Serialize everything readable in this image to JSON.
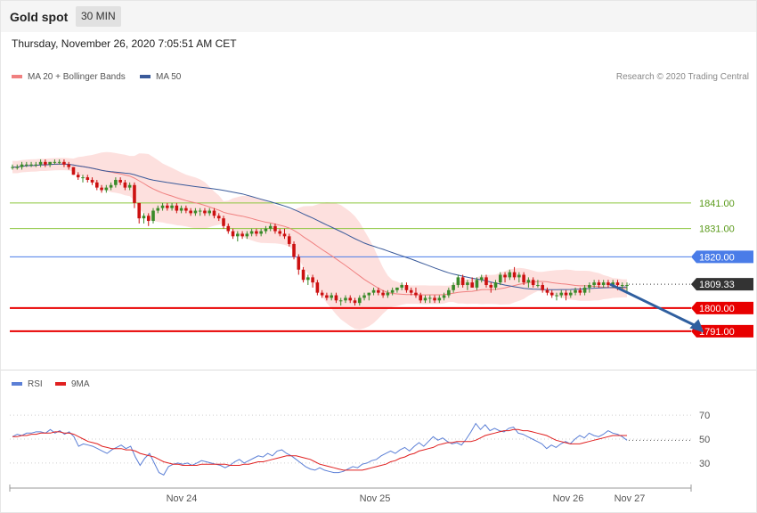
{
  "header": {
    "title": "Gold spot",
    "timeframe": "30 MIN"
  },
  "date_text": "Thursday, November 26, 2020 7:05:51 AM CET",
  "legend": {
    "ma20": "MA 20 + Bollinger Bands",
    "ma50": "MA 50",
    "rsi": "RSI",
    "ma9": "9MA",
    "ma20_color": "#f08080",
    "ma50_color": "#3a5a9a",
    "rsi_color": "#5b7fd6",
    "ma9_color": "#e02020"
  },
  "credit": "Research © 2020 Trading Central",
  "chart_data": [
    {
      "type": "candlestick",
      "ylim": [
        1784,
        1875
      ],
      "x_labels": [
        "Nov 24",
        "Nov 25",
        "Nov 26",
        "Nov 27"
      ],
      "levels": [
        {
          "value": 1841.0,
          "label": "1841.00",
          "style": "resistance-thin",
          "color": "#8dc63f"
        },
        {
          "value": 1831.0,
          "label": "1831.00",
          "style": "resistance-thin",
          "color": "#8dc63f"
        },
        {
          "value": 1820.0,
          "label": "1820.00",
          "style": "pivot",
          "color": "#4a7ce8"
        },
        {
          "value": 1809.33,
          "label": "1809.33",
          "style": "last",
          "color": "#333333"
        },
        {
          "value": 1800.0,
          "label": "1800.00",
          "style": "support",
          "color": "#e80000"
        },
        {
          "value": 1791.0,
          "label": "1791.00",
          "style": "support",
          "color": "#e80000"
        }
      ],
      "colors": {
        "up": "#3a8a2a",
        "down": "#cc1111",
        "band": "#fde0de",
        "ma20": "#f08080",
        "ma50": "#3a5a9a",
        "arrow": "#2f5f9f",
        "grid": "#e0e0e0"
      },
      "candles": [
        [
          1855,
          1856,
          1854,
          1855
        ],
        [
          1855,
          1856,
          1854,
          1855
        ],
        [
          1855,
          1857,
          1854,
          1856
        ],
        [
          1856,
          1857,
          1855,
          1856
        ],
        [
          1856,
          1857,
          1855,
          1856
        ],
        [
          1856,
          1857,
          1855,
          1856
        ],
        [
          1856,
          1858,
          1855,
          1857
        ],
        [
          1857,
          1858,
          1855,
          1856
        ],
        [
          1856,
          1857,
          1855,
          1857
        ],
        [
          1857,
          1858,
          1856,
          1857
        ],
        [
          1857,
          1858,
          1856,
          1857
        ],
        [
          1857,
          1858,
          1855,
          1856
        ],
        [
          1856,
          1857,
          1854,
          1855
        ],
        [
          1855,
          1855,
          1852,
          1852
        ],
        [
          1852,
          1853,
          1850,
          1851
        ],
        [
          1851,
          1852,
          1849,
          1851
        ],
        [
          1851,
          1852,
          1849,
          1850
        ],
        [
          1850,
          1851,
          1848,
          1849
        ],
        [
          1849,
          1850,
          1846,
          1847
        ],
        [
          1847,
          1848,
          1845,
          1846
        ],
        [
          1846,
          1848,
          1845,
          1847
        ],
        [
          1847,
          1849,
          1846,
          1848
        ],
        [
          1848,
          1851,
          1847,
          1850
        ],
        [
          1850,
          1851,
          1848,
          1849
        ],
        [
          1849,
          1850,
          1846,
          1847
        ],
        [
          1847,
          1849,
          1846,
          1848
        ],
        [
          1848,
          1849,
          1839,
          1841
        ],
        [
          1841,
          1841,
          1833,
          1835
        ],
        [
          1835,
          1837,
          1833,
          1836
        ],
        [
          1836,
          1837,
          1832,
          1834
        ],
        [
          1834,
          1839,
          1833,
          1838
        ],
        [
          1838,
          1840,
          1837,
          1839
        ],
        [
          1839,
          1841,
          1838,
          1840
        ],
        [
          1840,
          1841,
          1838,
          1839
        ],
        [
          1839,
          1841,
          1838,
          1840
        ],
        [
          1840,
          1841,
          1837,
          1838
        ],
        [
          1838,
          1840,
          1837,
          1839
        ],
        [
          1839,
          1840,
          1837,
          1838
        ],
        [
          1838,
          1839,
          1836,
          1837
        ],
        [
          1837,
          1839,
          1836,
          1838
        ],
        [
          1838,
          1839,
          1836,
          1838
        ],
        [
          1838,
          1839,
          1836,
          1837
        ],
        [
          1837,
          1839,
          1836,
          1838
        ],
        [
          1838,
          1839,
          1835,
          1836
        ],
        [
          1836,
          1837,
          1834,
          1835
        ],
        [
          1835,
          1836,
          1831,
          1832
        ],
        [
          1832,
          1833,
          1829,
          1830
        ],
        [
          1830,
          1831,
          1827,
          1828
        ],
        [
          1828,
          1830,
          1826,
          1829
        ],
        [
          1829,
          1830,
          1827,
          1828
        ],
        [
          1828,
          1830,
          1827,
          1829
        ],
        [
          1829,
          1831,
          1828,
          1830
        ],
        [
          1830,
          1831,
          1828,
          1829
        ],
        [
          1829,
          1831,
          1828,
          1830
        ],
        [
          1830,
          1832,
          1829,
          1831
        ],
        [
          1831,
          1833,
          1830,
          1832
        ],
        [
          1832,
          1833,
          1829,
          1830
        ],
        [
          1830,
          1831,
          1828,
          1829
        ],
        [
          1829,
          1831,
          1827,
          1828
        ],
        [
          1828,
          1829,
          1824,
          1825
        ],
        [
          1825,
          1826,
          1819,
          1820
        ],
        [
          1820,
          1821,
          1813,
          1815
        ],
        [
          1815,
          1816,
          1810,
          1811
        ],
        [
          1811,
          1813,
          1809,
          1812
        ],
        [
          1812,
          1813,
          1808,
          1810
        ],
        [
          1810,
          1811,
          1805,
          1806
        ],
        [
          1806,
          1807,
          1804,
          1805
        ],
        [
          1805,
          1806,
          1803,
          1804
        ],
        [
          1804,
          1806,
          1803,
          1805
        ],
        [
          1805,
          1806,
          1802,
          1803
        ],
        [
          1803,
          1804,
          1801,
          1803
        ],
        [
          1803,
          1805,
          1802,
          1804
        ],
        [
          1804,
          1805,
          1802,
          1803
        ],
        [
          1803,
          1804,
          1801,
          1802
        ],
        [
          1802,
          1805,
          1801,
          1804
        ],
        [
          1804,
          1806,
          1803,
          1805
        ],
        [
          1805,
          1806,
          1803,
          1806
        ],
        [
          1806,
          1808,
          1805,
          1807
        ],
        [
          1807,
          1808,
          1805,
          1806
        ],
        [
          1806,
          1807,
          1804,
          1805
        ],
        [
          1805,
          1807,
          1804,
          1806
        ],
        [
          1806,
          1808,
          1805,
          1807
        ],
        [
          1807,
          1808,
          1806,
          1808
        ],
        [
          1808,
          1810,
          1807,
          1809
        ],
        [
          1809,
          1810,
          1806,
          1807
        ],
        [
          1807,
          1808,
          1805,
          1806
        ],
        [
          1806,
          1808,
          1804,
          1805
        ],
        [
          1805,
          1806,
          1802,
          1803
        ],
        [
          1803,
          1805,
          1802,
          1804
        ],
        [
          1804,
          1805,
          1802,
          1804
        ],
        [
          1804,
          1805,
          1802,
          1803
        ],
        [
          1803,
          1805,
          1802,
          1804
        ],
        [
          1804,
          1806,
          1803,
          1805
        ],
        [
          1805,
          1808,
          1804,
          1807
        ],
        [
          1807,
          1810,
          1806,
          1809
        ],
        [
          1809,
          1813,
          1808,
          1812
        ],
        [
          1812,
          1813,
          1808,
          1809
        ],
        [
          1809,
          1811,
          1807,
          1810
        ],
        [
          1810,
          1812,
          1808,
          1808
        ],
        [
          1808,
          1812,
          1807,
          1811
        ],
        [
          1811,
          1813,
          1810,
          1812
        ],
        [
          1812,
          1813,
          1808,
          1809
        ],
        [
          1809,
          1810,
          1806,
          1808
        ],
        [
          1808,
          1811,
          1807,
          1810
        ],
        [
          1810,
          1814,
          1809,
          1813
        ],
        [
          1813,
          1814,
          1810,
          1812
        ],
        [
          1812,
          1815,
          1811,
          1814
        ],
        [
          1814,
          1816,
          1811,
          1812
        ],
        [
          1812,
          1814,
          1810,
          1813
        ],
        [
          1813,
          1814,
          1809,
          1810
        ],
        [
          1810,
          1812,
          1808,
          1811
        ],
        [
          1811,
          1812,
          1808,
          1809
        ],
        [
          1809,
          1811,
          1808,
          1809
        ],
        [
          1809,
          1810,
          1806,
          1807
        ],
        [
          1807,
          1808,
          1805,
          1806
        ],
        [
          1806,
          1807,
          1804,
          1805
        ],
        [
          1805,
          1806,
          1803,
          1805
        ],
        [
          1805,
          1807,
          1804,
          1806
        ],
        [
          1806,
          1807,
          1803,
          1805
        ],
        [
          1805,
          1807,
          1804,
          1806
        ],
        [
          1806,
          1808,
          1805,
          1807
        ],
        [
          1807,
          1808,
          1805,
          1806
        ],
        [
          1806,
          1809,
          1805,
          1808
        ],
        [
          1808,
          1810,
          1806,
          1809
        ],
        [
          1809,
          1811,
          1808,
          1810
        ],
        [
          1810,
          1811,
          1808,
          1809
        ],
        [
          1809,
          1811,
          1808,
          1810
        ],
        [
          1810,
          1811,
          1808,
          1809
        ],
        [
          1809,
          1811,
          1808,
          1810
        ],
        [
          1810,
          1811,
          1807,
          1809
        ],
        [
          1809,
          1810,
          1807,
          1809
        ],
        [
          1809,
          1810,
          1806,
          1809
        ]
      ],
      "forecast": [
        [
          127,
          1809.33
        ],
        [
          136,
          1791.5
        ]
      ]
    },
    {
      "type": "line",
      "ylim": [
        15,
        85
      ],
      "guides": [
        70,
        50,
        30
      ],
      "series": [
        {
          "name": "RSI",
          "color": "#5b7fd6",
          "values": [
            52,
            54,
            53,
            55,
            55,
            56,
            56,
            55,
            58,
            55,
            57,
            54,
            56,
            52,
            44,
            46,
            45,
            44,
            42,
            40,
            38,
            41,
            43,
            45,
            42,
            44,
            35,
            28,
            34,
            38,
            30,
            22,
            20,
            27,
            29,
            30,
            29,
            30,
            28,
            30,
            32,
            31,
            30,
            29,
            28,
            26,
            28,
            31,
            33,
            30,
            32,
            34,
            36,
            35,
            38,
            36,
            40,
            41,
            38,
            36,
            33,
            30,
            27,
            25,
            24,
            26,
            24,
            23,
            22,
            22,
            23,
            25,
            27,
            26,
            29,
            30,
            32,
            33,
            36,
            38,
            40,
            38,
            41,
            43,
            40,
            44,
            47,
            44,
            48,
            52,
            49,
            51,
            48,
            46,
            47,
            45,
            50,
            56,
            63,
            58,
            62,
            57,
            59,
            57,
            56,
            59,
            60,
            55,
            54,
            52,
            50,
            48,
            46,
            42,
            45,
            43,
            46,
            48,
            46,
            50,
            53,
            51,
            55,
            53,
            52,
            54,
            57,
            55,
            54,
            52,
            49
          ]
        },
        {
          "name": "9MA",
          "color": "#e02020",
          "values": [
            52,
            52,
            53,
            53,
            54,
            54,
            55,
            55,
            55,
            56,
            56,
            55,
            55,
            54,
            52,
            50,
            48,
            47,
            46,
            44,
            43,
            42,
            42,
            42,
            41,
            41,
            40,
            38,
            37,
            36,
            35,
            33,
            31,
            30,
            29,
            29,
            28,
            28,
            28,
            28,
            29,
            29,
            29,
            29,
            29,
            29,
            28,
            28,
            28,
            29,
            29,
            30,
            31,
            31,
            32,
            33,
            34,
            35,
            36,
            36,
            36,
            35,
            34,
            33,
            31,
            29,
            28,
            27,
            26,
            25,
            24,
            24,
            24,
            24,
            24,
            25,
            26,
            27,
            28,
            29,
            31,
            32,
            34,
            35,
            37,
            38,
            40,
            41,
            42,
            43,
            45,
            46,
            47,
            47,
            48,
            48,
            48,
            48,
            49,
            51,
            53,
            54,
            55,
            56,
            57,
            57,
            58,
            58,
            57,
            57,
            56,
            55,
            54,
            53,
            51,
            49,
            48,
            47,
            46,
            46,
            46,
            47,
            48,
            49,
            50,
            51,
            52,
            53,
            53,
            53,
            53
          ]
        }
      ],
      "x_labels": [
        "Nov 24",
        "Nov 25",
        "Nov 26",
        "Nov 27"
      ]
    }
  ]
}
